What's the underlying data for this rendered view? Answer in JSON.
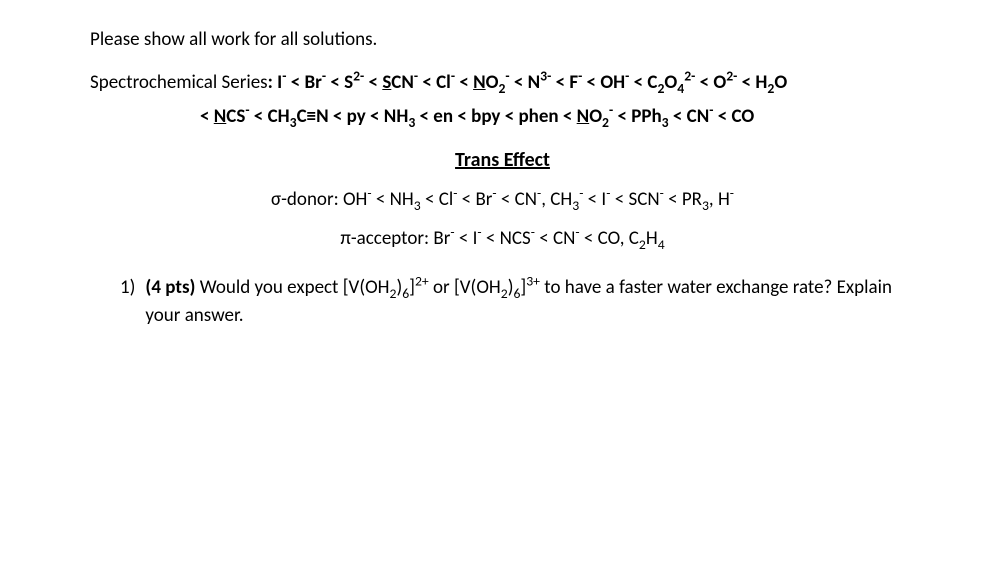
{
  "instruction": "Please show all work for all solutions.",
  "spectro": {
    "label": "Spectrochemical Series",
    "colon": ":",
    "sep": "   ",
    "p1_a": "I",
    "p1_b": " < Br",
    "p1_c": " < S",
    "p1_d": " < ",
    "p1_e": "S",
    "p1_f": "CN",
    "p1_g": " < Cl",
    "p1_h": " < ",
    "p1_i": "N",
    "p1_j": "O",
    "p1_k": " < N",
    "p1_l": " < F",
    "p1_m": " < OH",
    "p1_n": " < C",
    "p1_o": "O",
    "p1_p": " < O",
    "p1_q": " < H",
    "p1_r": "O",
    "p2_a": "< ",
    "p2_b": "N",
    "p2_c": "CS",
    "p2_d": " < CH",
    "p2_e": "C≡N < py < NH",
    "p2_f": " < en < bpy < phen < ",
    "p2_g": "N",
    "p2_h": "O",
    "p2_i": " < PPh",
    "p2_j": " < CN",
    "p2_k": " < CO",
    "sub2": "2",
    "sub3": "3",
    "sub4": "4",
    "sup_neg": "-",
    "sup_2neg": "2-",
    "sup_3neg": "3-"
  },
  "trans": {
    "title": "Trans Effect",
    "sigma_label": "σ-donor:  ",
    "s1_a": "OH",
    "s1_b": " < NH",
    "s1_c": " < Cl",
    "s1_d": " < Br",
    "s1_e": " < CN",
    "s1_f": ", CH",
    "s1_g": " < I",
    "s1_h": " < SCN",
    "s1_i": " < PR",
    "s1_j": ", H",
    "pi_label": "π-acceptor:  ",
    "p1_a": "Br",
    "p1_b": " < I",
    "p1_c": " < NCS",
    "p1_d": " < CN",
    "p1_e": " < CO, C",
    "p1_f": "H",
    "sub2": "2",
    "sub3": "3",
    "sub4": "4",
    "sup_neg": "-"
  },
  "question": {
    "num": "1)",
    "pts": "(4 pts)",
    "sp": "   ",
    "t1": "Would you expect [V(OH",
    "t2": ")",
    "t3": "]",
    "t4": " or [V(OH",
    "t5": ")",
    "t6": "]",
    "t7": " to have a faster water exchange rate? Explain your answer.",
    "sub2": "2",
    "sub6": "6",
    "sup2p": "2+",
    "sup3p": "3+"
  }
}
